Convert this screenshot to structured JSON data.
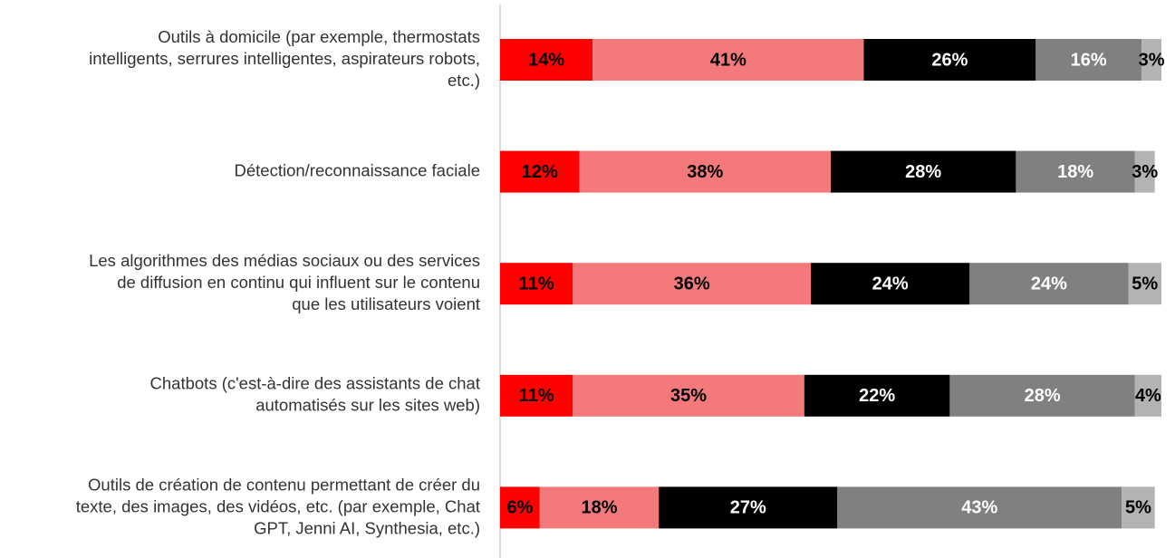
{
  "chart_data": {
    "type": "stacked-bar-horizontal",
    "categories": [
      [
        "Outils à domicile (par exemple, thermostats",
        "intelligents, serrures intelligentes, aspirateurs robots,",
        "etc.)"
      ],
      [
        "Détection/reconnaissance faciale"
      ],
      [
        "Les algorithmes des médias sociaux ou des services",
        "de diffusion en continu qui influent sur le contenu",
        "que les utilisateurs voient"
      ],
      [
        "Chatbots (c'est-à-dire des assistants de chat",
        "automatisés sur les sites web)"
      ],
      [
        "Outils de création de contenu permettant de créer du",
        "texte, des images, des vidéos, etc. (par exemple, Chat",
        "GPT, Jenni AI, Synthesia, etc.)"
      ]
    ],
    "series": [
      {
        "color": "#ff0000",
        "label_color": "#000000",
        "values": [
          14,
          12,
          11,
          11,
          6
        ],
        "value_labels": [
          "14%",
          "12%",
          "11%",
          "11%",
          "6%"
        ]
      },
      {
        "color": "#f4797b",
        "label_color": "#000000",
        "values": [
          41,
          38,
          36,
          35,
          18
        ],
        "value_labels": [
          "41%",
          "38%",
          "36%",
          "35%",
          "18%"
        ]
      },
      {
        "color": "#000000",
        "label_color": "#ffffff",
        "values": [
          26,
          28,
          24,
          22,
          27
        ],
        "value_labels": [
          "26%",
          "28%",
          "24%",
          "22%",
          "27%"
        ]
      },
      {
        "color": "#808080",
        "label_color": "#ffffff",
        "values": [
          16,
          18,
          24,
          28,
          43
        ],
        "value_labels": [
          "16%",
          "18%",
          "24%",
          "28%",
          "43%"
        ]
      },
      {
        "color": "#b3b3b3",
        "label_color": "#000000",
        "values": [
          3,
          3,
          5,
          4,
          5
        ],
        "value_labels": [
          "3%",
          "3%",
          "5%",
          "4%",
          "5%"
        ]
      }
    ],
    "xlim": [
      0,
      100
    ]
  }
}
